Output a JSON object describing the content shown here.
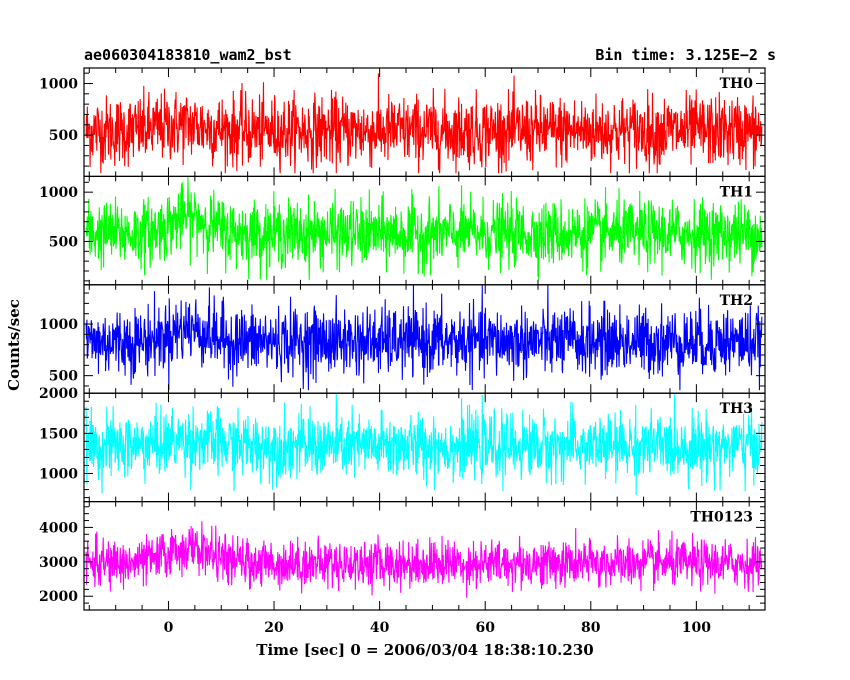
{
  "header": {
    "left_title": "ae060304183810_wam2_bst",
    "right_title": "Bin time: 3.125E−2 s"
  },
  "chart_data": {
    "type": "line",
    "title": "ae060304183810_wam2_bst",
    "subtitle": "Bin time: 3.125E−2 s",
    "xlabel": "Time [sec] 0 = 2006/03/04 18:38:10.230",
    "ylabel": "Counts/sec",
    "xlim": [
      -16,
      113
    ],
    "x_ticks": [
      0,
      20,
      40,
      60,
      80,
      100
    ],
    "x_tick_labels": [
      "0",
      "20",
      "40",
      "60",
      "80",
      "100"
    ],
    "x_data_range": [
      -15.6,
      112.4
    ],
    "bin_time_s": 0.03125,
    "panels": [
      {
        "name": "TH0",
        "color": "#ff0000",
        "ylim": [
          100,
          1150
        ],
        "y_ticks": [
          500,
          1000
        ],
        "y_tick_labels": [
          "500",
          "1000"
        ],
        "mean": 540,
        "noise": 170,
        "low_bound": 130,
        "high_bound": 1150,
        "burst_center": 3,
        "burst_width": 6,
        "burst_amp": 60
      },
      {
        "name": "TH1",
        "color": "#00ff00",
        "ylim": [
          60,
          1160
        ],
        "y_ticks": [
          500,
          1000
        ],
        "y_tick_labels": [
          "500",
          "1000"
        ],
        "mean": 580,
        "noise": 165,
        "low_bound": 110,
        "high_bound": 1160,
        "burst_center": 4,
        "burst_width": 5,
        "burst_amp": 170
      },
      {
        "name": "TH2",
        "color": "#0000ff",
        "ylim": [
          330,
          1380
        ],
        "y_ticks": [
          500,
          1000
        ],
        "y_tick_labels": [
          "500",
          "1000"
        ],
        "mean": 830,
        "noise": 165,
        "low_bound": 360,
        "high_bound": 1380,
        "burst_center": 4,
        "burst_width": 5,
        "burst_amp": 130
      },
      {
        "name": "TH3",
        "color": "#00ffff",
        "ylim": [
          650,
          2000
        ],
        "y_ticks": [
          1000,
          1500,
          2000
        ],
        "y_tick_labels": [
          "1000",
          "1500",
          "2000"
        ],
        "mean": 1340,
        "noise": 200,
        "low_bound": 700,
        "high_bound": 2000,
        "burst_center": 4,
        "burst_width": 6,
        "burst_amp": 80
      },
      {
        "name": "TH0123",
        "color": "#ff00ff",
        "ylim": [
          1600,
          4750
        ],
        "y_ticks": [
          2000,
          3000,
          4000
        ],
        "y_tick_labels": [
          "2000",
          "3000",
          "4000"
        ],
        "mean": 2950,
        "noise": 340,
        "low_bound": 1700,
        "high_bound": 4750,
        "burst_center": 4,
        "burst_width": 6,
        "burst_amp": 450
      }
    ],
    "grid": false,
    "legend": "none"
  }
}
